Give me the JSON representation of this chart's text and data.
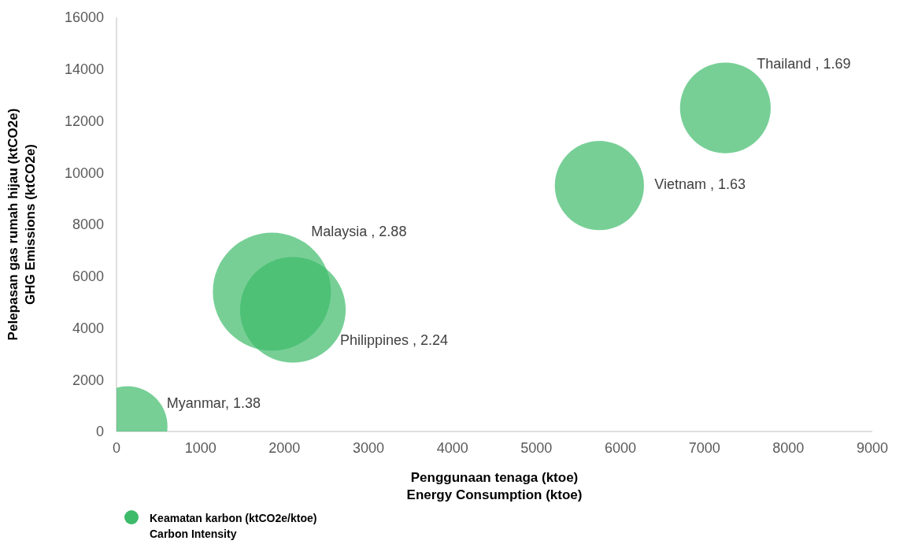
{
  "chart_data": {
    "type": "bubble",
    "xlabel": "Penggunaan tenaga (ktoe)\nEnergy Consumption (ktoe)",
    "ylabel": "Pelepasan gas rumah hijau (ktCO2e)\nGHG Emissions (ktCO2e)",
    "x": [
      130,
      1850,
      2100,
      5750,
      7250
    ],
    "series": [
      {
        "name": "Keamatan karbon (ktCO2e/ktoe)\nCarbon Intensity",
        "color": "#3dba6a",
        "values": [
          200,
          5400,
          4700,
          9500,
          12500
        ],
        "sizes": [
          0.46,
          1,
          0.8,
          0.57,
          0.59
        ]
      }
    ],
    "annotations": [
      "Myanmar, 1.38",
      "Malaysia , 2.88",
      "Philippines , 2.24",
      "Vietnam , 1.63",
      "Thailand , 1.69"
    ],
    "xlim": [
      0,
      9000
    ],
    "xticks": [
      0,
      1000,
      2000,
      3000,
      4000,
      5000,
      6000,
      7000,
      8000,
      9000
    ],
    "ylim": [
      0,
      16000
    ],
    "yticks": [
      0,
      2000,
      4000,
      6000,
      8000,
      10000,
      12000,
      14000,
      16000
    ],
    "grid": false,
    "legend": "bottom left"
  }
}
